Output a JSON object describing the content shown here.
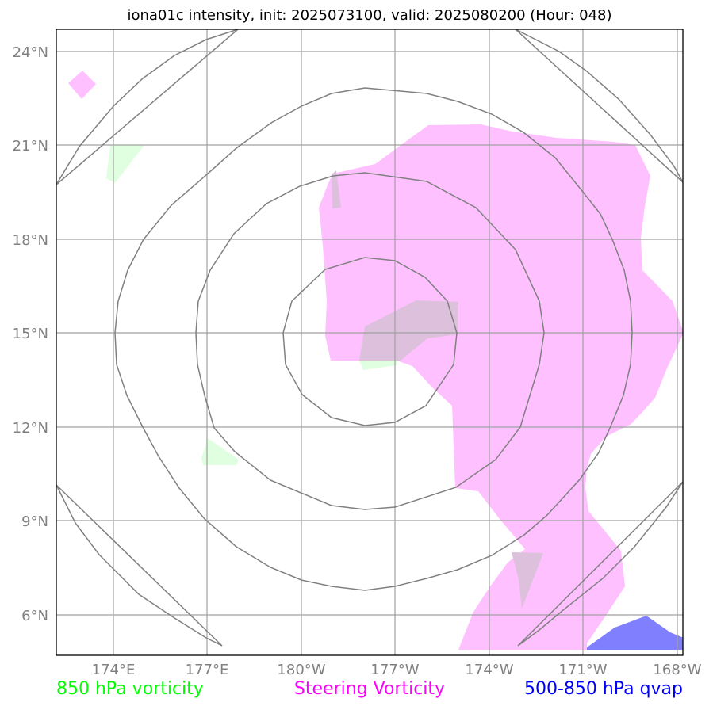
{
  "title": "iona01c intensity, init: 2025073100, valid: 2025080200 (Hour: 048)",
  "map": {
    "lat_labels": [
      "24°N",
      "21°N",
      "18°N",
      "15°N",
      "12°N",
      "9°N",
      "6°N"
    ],
    "lon_labels": [
      "174°E",
      "177°E",
      "180°W",
      "177°W",
      "174°W",
      "171°W",
      "168°W"
    ]
  },
  "legend": {
    "items": [
      {
        "label": "850 hPa vorticity",
        "color": "#00ff00"
      },
      {
        "label": "Steering Vorticity",
        "color": "#ff00ff"
      },
      {
        "label": "500-850 hPa qvap",
        "color": "#0000ff"
      }
    ]
  },
  "colors": {
    "vorticity_fill": "#e0ffe0",
    "steering_fill": "#ffc0ff",
    "overlap_fill": "#dcc0dc",
    "qvap_fill": "#8080ff",
    "rings": "#808080",
    "grid": "#a0a0a0"
  }
}
